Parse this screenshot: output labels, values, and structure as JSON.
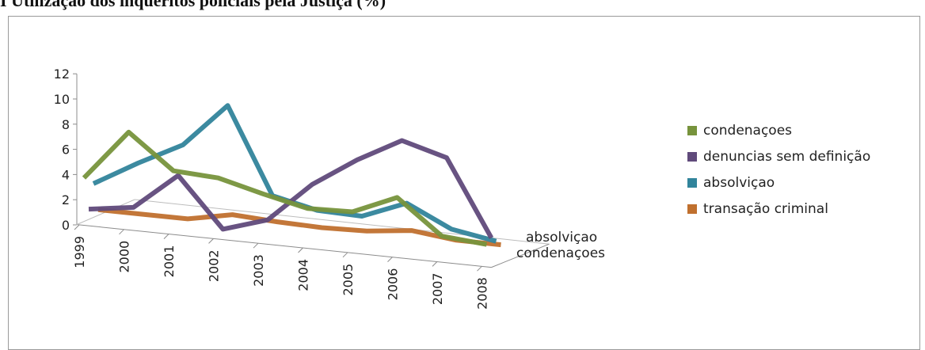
{
  "title": "I Utilização dos inquéritos policiais pela Justiça (%)",
  "chart_data": {
    "type": "line",
    "title": "I Utilização dos inquéritos policiais pela Justiça (%)",
    "categories": [
      "1999",
      "2000",
      "2001",
      "2002",
      "2003",
      "2004",
      "2005",
      "2006",
      "2007",
      "2008"
    ],
    "depth_labels": [
      "absolviçao",
      "condenaçoes"
    ],
    "ylim": [
      0,
      12
    ],
    "y_ticks": [
      "0",
      "2",
      "4",
      "6",
      "8",
      "10",
      "12"
    ],
    "grid": false,
    "legend_position": "right",
    "series": [
      {
        "name": "condenaçoes",
        "color": "#77933c",
        "values": [
          3.5,
          7.5,
          4.8,
          4.6,
          3.7,
          2.9,
          3.0,
          4.5,
          1.8,
          1.5
        ]
      },
      {
        "name": "denuncias sem definição",
        "color": "#604a7b",
        "values": [
          0.8,
          1.3,
          4.2,
          0.3,
          1.4,
          4.6,
          6.9,
          8.8,
          7.8,
          1.8
        ]
      },
      {
        "name": "absolviçao",
        "color": "#31849b",
        "values": [
          2.6,
          4.6,
          6.4,
          9.9,
          3.1,
          2.3,
          2.2,
          3.6,
          1.9,
          1.3
        ]
      },
      {
        "name": "transação criminal",
        "color": "#c0702e",
        "values": [
          0.3,
          0.3,
          0.3,
          1.0,
          0.8,
          0.7,
          0.8,
          1.2,
          0.8,
          0.8
        ]
      }
    ]
  }
}
